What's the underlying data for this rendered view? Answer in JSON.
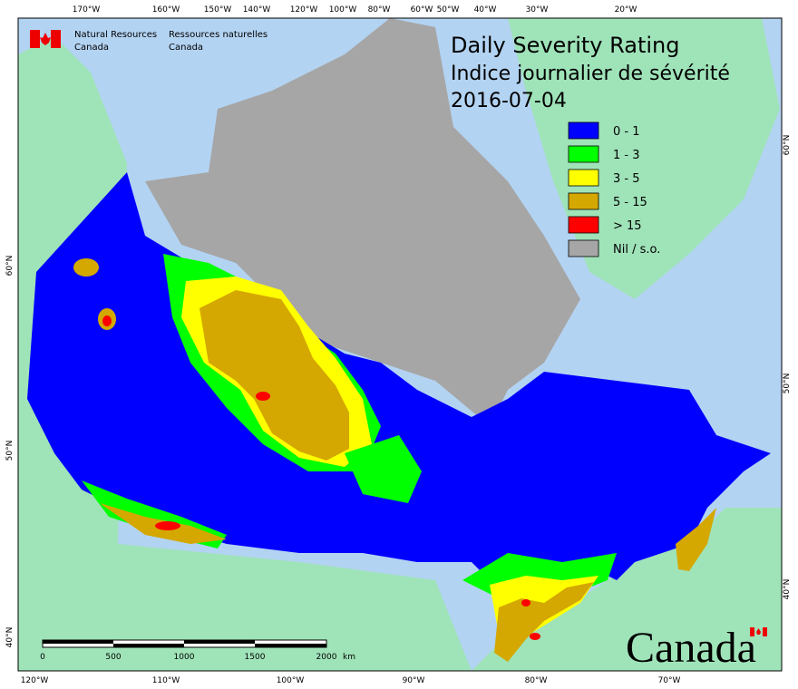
{
  "header": {
    "agency_en": [
      "Natural Resources",
      "Canada"
    ],
    "agency_fr": [
      "Ressources naturelles",
      "Canada"
    ]
  },
  "title": [
    "Daily Severity Rating",
    "Indice journalier de sévérité",
    "2016-07-04"
  ],
  "legend": [
    {
      "label": "0 - 1",
      "color": "#0000ff"
    },
    {
      "label": "1 - 3",
      "color": "#00ff00"
    },
    {
      "label": "3 - 5",
      "color": "#ffff00"
    },
    {
      "label": "5 - 15",
      "color": "#d4a800"
    },
    {
      "label": "> 15",
      "color": "#ff0000"
    },
    {
      "label": "Nil / s.o.",
      "color": "#a6a6a6"
    }
  ],
  "graticule": {
    "top": [
      "170°W",
      "160°W",
      "150°W",
      "140°W",
      "120°W",
      "100°W",
      "80°W",
      "60°W",
      "50°W",
      "40°W",
      "30°W",
      "20°W"
    ],
    "bottom": [
      "120°W",
      "110°W",
      "100°W",
      "90°W",
      "80°W",
      "70°W"
    ],
    "left": [
      "60°N",
      "50°N",
      "40°N"
    ],
    "right": [
      "60°N",
      "50°N",
      "40°N"
    ]
  },
  "scale_bar": {
    "labels": [
      "0",
      "500",
      "1000",
      "1500",
      "2000"
    ],
    "unit": "km"
  },
  "wordmark": "Canada"
}
